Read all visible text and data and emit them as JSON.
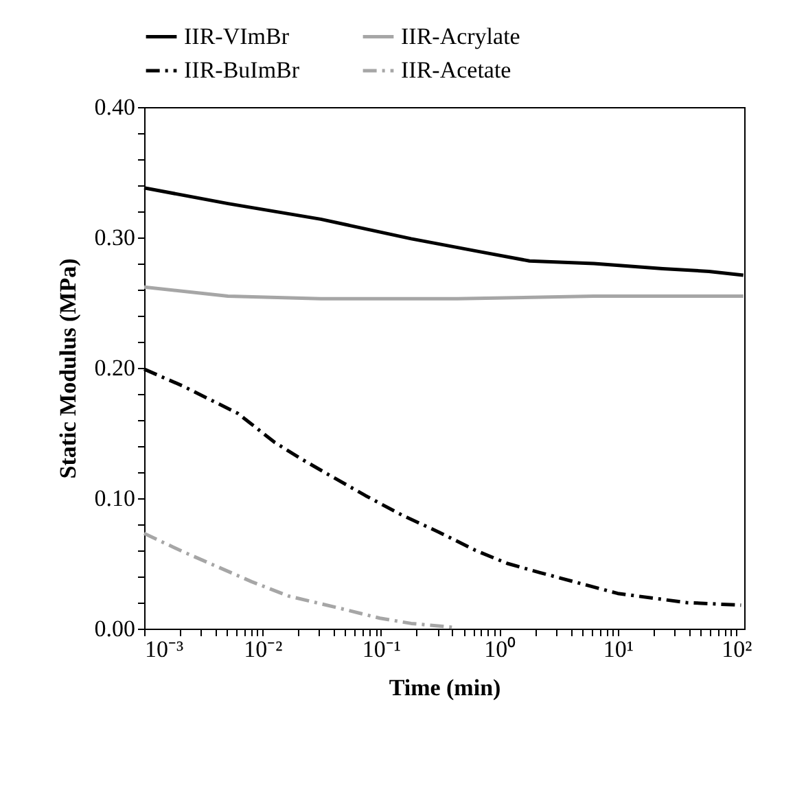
{
  "chart_data": {
    "type": "line",
    "xlabel": "Time (min)",
    "ylabel": "Static Modulus  (MPa)",
    "log": "x",
    "legend": "top",
    "grid": false,
    "xlim": [
      0.001,
      117
    ],
    "ylim": [
      0,
      0.4
    ],
    "xticks": [
      {
        "value": 0.001,
        "label": "10⁻³"
      },
      {
        "value": 0.002,
        "label": null
      },
      {
        "value": 0.003,
        "label": null
      },
      {
        "value": 0.004,
        "label": null
      },
      {
        "value": 0.005,
        "label": null
      },
      {
        "value": 0.006,
        "label": null
      },
      {
        "value": 0.007,
        "label": null
      },
      {
        "value": 0.008,
        "label": null
      },
      {
        "value": 0.009,
        "label": null
      },
      {
        "value": 0.01,
        "label": "10⁻²"
      },
      {
        "value": 0.02,
        "label": null
      },
      {
        "value": 0.03,
        "label": null
      },
      {
        "value": 0.04,
        "label": null
      },
      {
        "value": 0.05,
        "label": null
      },
      {
        "value": 0.06,
        "label": null
      },
      {
        "value": 0.07,
        "label": null
      },
      {
        "value": 0.08,
        "label": null
      },
      {
        "value": 0.09,
        "label": null
      },
      {
        "value": 0.1,
        "label": "10⁻¹"
      },
      {
        "value": 0.2,
        "label": null
      },
      {
        "value": 0.3,
        "label": null
      },
      {
        "value": 0.4,
        "label": null
      },
      {
        "value": 0.5,
        "label": null
      },
      {
        "value": 0.6,
        "label": null
      },
      {
        "value": 0.7,
        "label": null
      },
      {
        "value": 0.8,
        "label": null
      },
      {
        "value": 0.9,
        "label": null
      },
      {
        "value": 1,
        "label": "10⁰"
      },
      {
        "value": 2,
        "label": null
      },
      {
        "value": 3,
        "label": null
      },
      {
        "value": 4,
        "label": null
      },
      {
        "value": 5,
        "label": null
      },
      {
        "value": 6,
        "label": null
      },
      {
        "value": 7,
        "label": null
      },
      {
        "value": 8,
        "label": null
      },
      {
        "value": 9,
        "label": null
      },
      {
        "value": 10,
        "label": "10¹"
      },
      {
        "value": 20,
        "label": null
      },
      {
        "value": 30,
        "label": null
      },
      {
        "value": 40,
        "label": null
      },
      {
        "value": 50,
        "label": null
      },
      {
        "value": 60,
        "label": null
      },
      {
        "value": 70,
        "label": null
      },
      {
        "value": 80,
        "label": null
      },
      {
        "value": 90,
        "label": null
      },
      {
        "value": 100,
        "label": "10²"
      }
    ],
    "yticks": [
      {
        "value": 0,
        "label": "0.00"
      },
      {
        "value": 0.02,
        "label": null
      },
      {
        "value": 0.04,
        "label": null
      },
      {
        "value": 0.06,
        "label": null
      },
      {
        "value": 0.08,
        "label": null
      },
      {
        "value": 0.1,
        "label": "0.10"
      },
      {
        "value": 0.12,
        "label": null
      },
      {
        "value": 0.14,
        "label": null
      },
      {
        "value": 0.16,
        "label": null
      },
      {
        "value": 0.18,
        "label": null
      },
      {
        "value": 0.2,
        "label": "0.20"
      },
      {
        "value": 0.22,
        "label": null
      },
      {
        "value": 0.24,
        "label": null
      },
      {
        "value": 0.26,
        "label": null
      },
      {
        "value": 0.28,
        "label": null
      },
      {
        "value": 0.3,
        "label": "0.30"
      },
      {
        "value": 0.32,
        "label": null
      },
      {
        "value": 0.34,
        "label": null
      },
      {
        "value": 0.36,
        "label": null
      },
      {
        "value": 0.38,
        "label": null
      },
      {
        "value": 0.4,
        "label": "0.40"
      }
    ],
    "series": [
      {
        "name": "IIR-VImBr",
        "color": "#000000",
        "line_style": "solid",
        "x": [
          0.001,
          0.0051,
          0.031,
          0.18,
          0.69,
          1.8,
          6.3,
          24,
          59,
          115
        ],
        "values": [
          0.338,
          0.326,
          0.314,
          0.299,
          0.289,
          0.282,
          0.28,
          0.276,
          0.274,
          0.271
        ]
      },
      {
        "name": "IIR-Acrylate",
        "color": "#a6a6a6",
        "line_style": "solid",
        "x": [
          0.001,
          0.0051,
          0.031,
          0.44,
          6.3,
          115
        ],
        "values": [
          0.262,
          0.255,
          0.253,
          0.253,
          0.255,
          0.255
        ]
      },
      {
        "name": "IIR-BuImBr",
        "color": "#000000",
        "line_style": "dashed",
        "x": [
          0.001,
          0.00213,
          0.0062,
          0.0126,
          0.0214,
          0.0363,
          0.0741,
          0.151,
          0.309,
          0.63,
          1.17,
          2.2,
          10,
          38,
          110
        ],
        "values": [
          0.199,
          0.186,
          0.165,
          0.143,
          0.13,
          0.118,
          0.102,
          0.087,
          0.074,
          0.06,
          0.05,
          0.043,
          0.027,
          0.02,
          0.018
        ]
      },
      {
        "name": "IIR-Acetate",
        "color": "#a6a6a6",
        "line_style": "dashed",
        "x": [
          0.001,
          0.00213,
          0.0081,
          0.0166,
          0.048,
          0.098,
          0.18,
          0.41
        ],
        "values": [
          0.073,
          0.059,
          0.036,
          0.025,
          0.015,
          0.008,
          0.004,
          0.001
        ]
      }
    ]
  }
}
